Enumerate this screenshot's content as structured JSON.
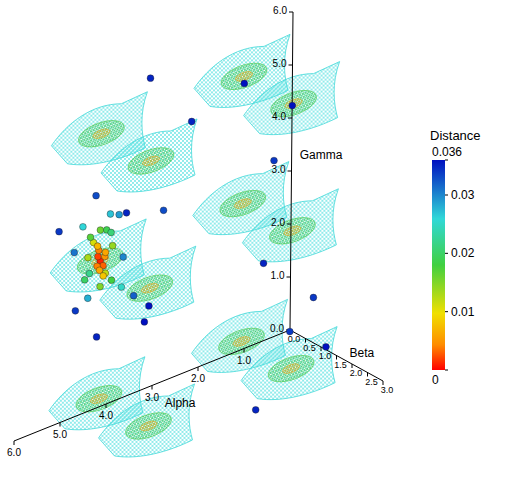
{
  "chart_data": {
    "type": "scatter3d",
    "xlabel": "Alpha",
    "ylabel": "Beta",
    "zlabel": "Gamma",
    "xlim": [
      0,
      6
    ],
    "ylim": [
      0,
      3
    ],
    "zlim": [
      0,
      6
    ],
    "xticks": [
      {
        "value": 1,
        "label": "1.0"
      },
      {
        "value": 2,
        "label": "2.0"
      },
      {
        "value": 3,
        "label": "3.0"
      },
      {
        "value": 4,
        "label": "4.0"
      },
      {
        "value": 5,
        "label": "5.0"
      },
      {
        "value": 6,
        "label": "6.0"
      }
    ],
    "yticks": [
      {
        "value": 0,
        "label": "0.0"
      },
      0.5,
      {
        "value": 1,
        "label": "1.0"
      },
      1.5,
      {
        "value": 2,
        "label": "2.0"
      },
      2.5,
      {
        "value": 3,
        "label": "3.0"
      }
    ],
    "zticks": [
      {
        "value": 0,
        "label": "0.0"
      },
      {
        "value": 1,
        "label": "1.0"
      },
      {
        "value": 2,
        "label": "2.0"
      },
      {
        "value": 3,
        "label": "3.0"
      },
      {
        "value": 4,
        "label": "4.0"
      },
      {
        "value": 5,
        "label": "5.0"
      },
      {
        "value": 6,
        "label": "6.0"
      }
    ],
    "isosurface_centers": {
      "x": [
        1.6,
        1.6,
        4.7,
        4.7,
        1.6,
        1.6,
        4.7,
        4.7,
        1.6,
        1.6,
        4.7,
        4.7
      ],
      "y": [
        0.8,
        2.4,
        0.8,
        2.4,
        0.8,
        2.4,
        0.8,
        2.4,
        0.8,
        2.4,
        0.8,
        2.4
      ],
      "z": [
        0.6,
        0.6,
        0.6,
        0.6,
        3.2,
        3.2,
        3.2,
        3.2,
        5.6,
        5.6,
        5.6,
        5.6
      ]
    },
    "points": {
      "x": [
        5.4,
        4.9,
        4.2,
        3.6,
        2.8,
        2.0,
        1.2,
        1.0,
        0.3,
        1.5,
        2.5,
        0.2,
        3.3,
        1.4,
        4.3,
        5.05,
        4.35,
        5.1,
        4.5,
        4.2,
        5.2,
        4.1,
        4.6,
        5.3,
        4.0,
        3.9,
        4.85,
        4.55,
        4.9,
        4.5,
        4.8,
        4.6,
        4.95,
        4.45,
        4.7,
        4.9,
        4.4,
        5.0,
        4.7,
        4.75,
        4.65,
        4.72,
        4.6,
        4.8,
        4.68,
        4.76,
        4.62,
        4.7
      ],
      "y": [
        0.5,
        1.0,
        1.5,
        1.2,
        0.9,
        1.4,
        1.2,
        0.6,
        1.6,
        2.2,
        2.6,
        0.3,
        0.3,
        2.8,
        0.9,
        0.75,
        0.6,
        1.0,
        1.1,
        0.8,
        0.7,
        1.0,
        0.5,
        0.9,
        0.6,
        1.2,
        0.8,
        0.75,
        0.7,
        0.9,
        0.95,
        0.65,
        0.85,
        0.8,
        1.0,
        0.6,
        0.7,
        0.9,
        0.8,
        0.8,
        0.82,
        0.78,
        0.8,
        0.85,
        0.75,
        0.8,
        0.85,
        0.9
      ],
      "z": [
        3.9,
        1.9,
        2.1,
        3.9,
        5.2,
        5.8,
        4.0,
        1.8,
        0.3,
        1.2,
        0.2,
        4.4,
        6.0,
        2.0,
        2.6,
        3.95,
        3.9,
        2.7,
        4.1,
        3.1,
        3.5,
        2.4,
        4.3,
        2.5,
        3.8,
        2.2,
        3.6,
        2.9,
        3.3,
        3.45,
        2.8,
        3.7,
        3.75,
        2.75,
        3.85,
        2.85,
        3.6,
        3.1,
        3.2,
        3.3,
        3.1,
        3.4,
        3.25,
        3.15,
        3.0,
        3.5,
        3.35,
        2.95
      ],
      "distance": [
        0.034,
        0.035,
        0.036,
        0.033,
        0.035,
        0.036,
        0.034,
        0.035,
        0.036,
        0.034,
        0.035,
        0.036,
        0.035,
        0.034,
        0.025,
        0.026,
        0.027,
        0.028,
        0.029,
        0.03,
        0.031,
        0.032,
        0.033,
        0.034,
        0.035,
        0.036,
        0.011,
        0.012,
        0.013,
        0.014,
        0.015,
        0.016,
        0.017,
        0.018,
        0.019,
        0.02,
        0.021,
        0.022,
        0.001,
        0.002,
        0.003,
        0.004,
        0.005,
        0.004,
        0.006,
        0.007,
        0.006,
        0.008
      ]
    },
    "colorbar": {
      "label": "Distance",
      "range": [
        0,
        0.036
      ],
      "ticks": [
        0,
        0.01,
        0.02,
        0.03,
        0.036
      ]
    }
  }
}
